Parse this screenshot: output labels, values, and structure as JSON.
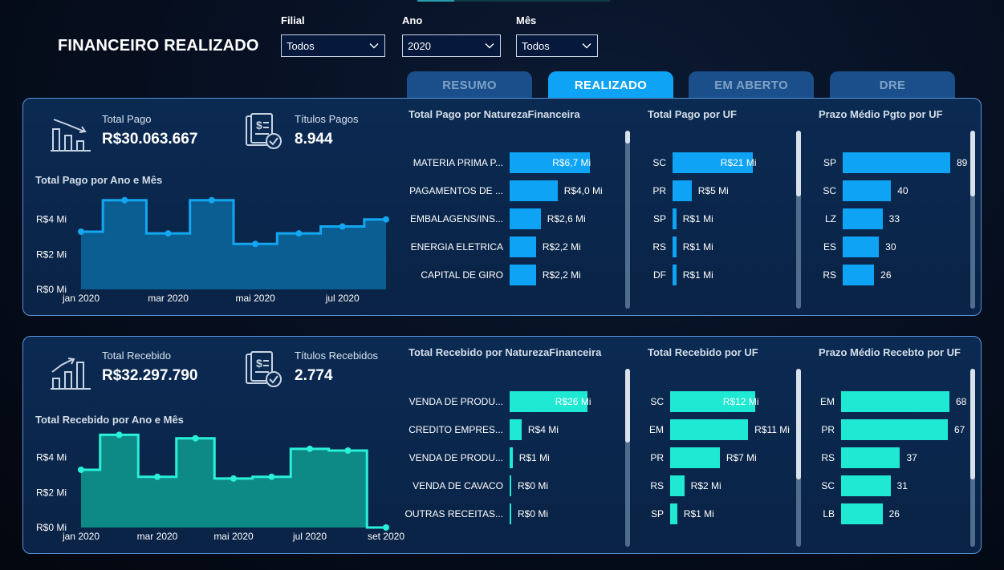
{
  "page": {
    "title": "FINANCEIRO REALIZADO"
  },
  "filters": [
    {
      "label": "Filial",
      "value": "Todos"
    },
    {
      "label": "Ano",
      "value": "2020"
    },
    {
      "label": "Mês",
      "value": "Todos"
    }
  ],
  "tabs": [
    {
      "label": "RESUMO",
      "active": false
    },
    {
      "label": "REALIZADO",
      "active": true
    },
    {
      "label": "EM ABERTO",
      "active": false
    },
    {
      "label": "DRE",
      "active": false
    }
  ],
  "colors": {
    "pago": "#0fa3f5",
    "recebido": "#1fe8d3"
  },
  "pago": {
    "kpi_total": {
      "label": "Total Pago",
      "value": "R$30.063.667",
      "icon": "bar-chart-down-icon"
    },
    "kpi_titulos": {
      "label": "Títulos Pagos",
      "value": "8.944",
      "icon": "invoice-check-icon"
    },
    "trend_title": "Total Pago por Ano e Mês",
    "natureza_title": "Total Pago por NaturezaFinanceira",
    "uf_title": "Total Pago por UF",
    "prazo_title": "Prazo Médio Pgto por UF"
  },
  "recebido": {
    "kpi_total": {
      "label": "Total Recebido",
      "value": "R$32.297.790",
      "icon": "bar-chart-up-icon"
    },
    "kpi_titulos": {
      "label": "Títulos Recebidos",
      "value": "2.774",
      "icon": "invoice-check-icon"
    },
    "trend_title": "Total Recebido por Ano e Mês",
    "natureza_title": "Total Recebido por NaturezaFinanceira",
    "uf_title": "Total Recebido por UF",
    "prazo_title": "Prazo Médio Recebto por UF"
  },
  "chart_data": [
    {
      "id": "pago-trend",
      "type": "area",
      "title": "Total Pago por Ano e Mês",
      "x": [
        "jan 2020",
        "fev 2020",
        "mar 2020",
        "abr 2020",
        "mai 2020",
        "jun 2020",
        "jul 2020",
        "ago 2020"
      ],
      "tick_labels": [
        "jan 2020",
        "mar 2020",
        "mai 2020",
        "jul 2020"
      ],
      "y_ticks": [
        "R$0 Mi",
        "R$2 Mi",
        "R$4 Mi"
      ],
      "values": [
        3.3,
        5.1,
        3.2,
        5.1,
        2.6,
        3.2,
        3.6,
        4.0
      ],
      "ylim": [
        0,
        5.5
      ],
      "step": "mid"
    },
    {
      "id": "pago-natureza",
      "type": "bar",
      "orientation": "horizontal",
      "title": "Total Pago por NaturezaFinanceira",
      "categories": [
        "MATERIA PRIMA P...",
        "PAGAMENTOS DE ...",
        "EMBALAGENS/INS...",
        "ENERGIA ELETRICA",
        "CAPITAL DE GIRO"
      ],
      "values": [
        6.7,
        4.0,
        2.6,
        2.2,
        2.2
      ],
      "labels": [
        "R$6,7 Mi",
        "R$4,0 Mi",
        "R$2,6 Mi",
        "R$2,2 Mi",
        "R$2,2 Mi"
      ]
    },
    {
      "id": "pago-uf",
      "type": "bar",
      "orientation": "horizontal",
      "title": "Total Pago por UF",
      "categories": [
        "SC",
        "PR",
        "SP",
        "RS",
        "DF"
      ],
      "values": [
        21,
        5,
        1,
        1,
        1
      ],
      "labels": [
        "R$21 Mi",
        "R$5 Mi",
        "R$1 Mi",
        "R$1 Mi",
        "R$1 Mi"
      ]
    },
    {
      "id": "pago-prazo",
      "type": "bar",
      "orientation": "horizontal",
      "title": "Prazo Médio Pgto por UF",
      "categories": [
        "SP",
        "SC",
        "LZ",
        "ES",
        "RS"
      ],
      "values": [
        89,
        40,
        33,
        30,
        26
      ],
      "labels": [
        "89",
        "40",
        "33",
        "30",
        "26"
      ]
    },
    {
      "id": "recebido-trend",
      "type": "area",
      "title": "Total Recebido por Ano e Mês",
      "x": [
        "jan 2020",
        "fev 2020",
        "mar 2020",
        "abr 2020",
        "mai 2020",
        "jun 2020",
        "jul 2020",
        "ago 2020",
        "set 2020"
      ],
      "tick_labels": [
        "jan 2020",
        "mar 2020",
        "mai 2020",
        "jul 2020",
        "set 2020"
      ],
      "y_ticks": [
        "R$0 Mi",
        "R$2 Mi",
        "R$4 Mi"
      ],
      "values": [
        3.3,
        5.3,
        2.9,
        5.1,
        2.8,
        2.9,
        4.5,
        4.4,
        0.0
      ],
      "ylim": [
        0,
        5.5
      ],
      "step": "mid"
    },
    {
      "id": "recebido-natureza",
      "type": "bar",
      "orientation": "horizontal",
      "title": "Total Recebido por NaturezaFinanceira",
      "categories": [
        "VENDA DE PRODU...",
        "CREDITO EMPRES...",
        "VENDA DE PRODU...",
        "VENDA DE CAVACO",
        "OUTRAS RECEITAS..."
      ],
      "values": [
        26,
        4,
        1,
        0.3,
        0.3
      ],
      "labels": [
        "R$26 Mi",
        "R$4 Mi",
        "R$1 Mi",
        "R$0 Mi",
        "R$0 Mi"
      ]
    },
    {
      "id": "recebido-uf",
      "type": "bar",
      "orientation": "horizontal",
      "title": "Total Recebido por UF",
      "categories": [
        "SC",
        "EM",
        "PR",
        "RS",
        "SP"
      ],
      "values": [
        12,
        11,
        7,
        2,
        1
      ],
      "labels": [
        "R$12 Mi",
        "R$11 Mi",
        "R$7 Mi",
        "R$2 Mi",
        "R$1 Mi"
      ]
    },
    {
      "id": "recebido-prazo",
      "type": "bar",
      "orientation": "horizontal",
      "title": "Prazo Médio Recebto por UF",
      "categories": [
        "EM",
        "PR",
        "RS",
        "SC",
        "LB"
      ],
      "values": [
        68,
        67,
        37,
        31,
        26
      ],
      "labels": [
        "68",
        "67",
        "37",
        "31",
        "26"
      ]
    }
  ]
}
